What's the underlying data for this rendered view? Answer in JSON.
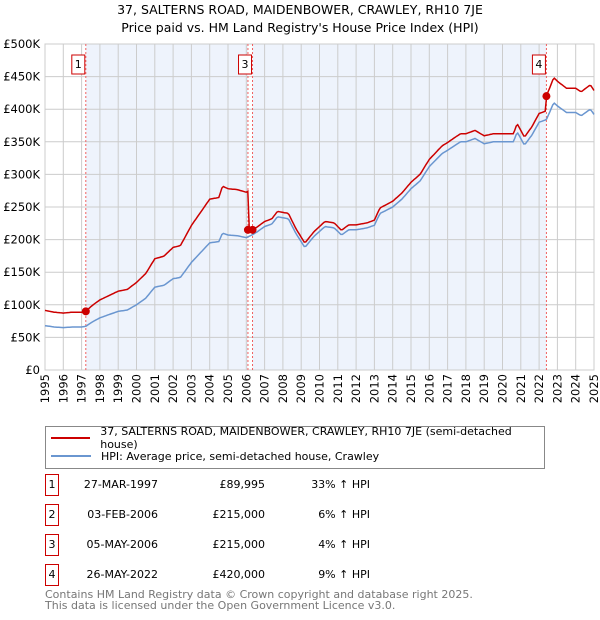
{
  "chart_data": {
    "type": "line",
    "title": "37, SALTERNS ROAD, MAIDENBOWER, CRAWLEY, RH10 7JE",
    "subtitle": "Price paid vs. HM Land Registry's House Price Index (HPI)",
    "xlim": [
      1995,
      2025
    ],
    "ylim": [
      0,
      500000
    ],
    "x_ticks": [
      "1995",
      "1996",
      "1997",
      "1998",
      "1999",
      "2000",
      "2001",
      "2002",
      "2003",
      "2004",
      "2005",
      "2006",
      "2007",
      "2008",
      "2009",
      "2010",
      "2011",
      "2012",
      "2013",
      "2014",
      "2015",
      "2016",
      "2017",
      "2018",
      "2019",
      "2020",
      "2021",
      "2022",
      "2023",
      "2024",
      "2025"
    ],
    "y_ticks": [
      {
        "v": 0,
        "label": "£0"
      },
      {
        "v": 50000,
        "label": "£50K"
      },
      {
        "v": 100000,
        "label": "£100K"
      },
      {
        "v": 150000,
        "label": "£150K"
      },
      {
        "v": 200000,
        "label": "£200K"
      },
      {
        "v": 250000,
        "label": "£250K"
      },
      {
        "v": 300000,
        "label": "£300K"
      },
      {
        "v": 350000,
        "label": "£350K"
      },
      {
        "v": 400000,
        "label": "£400K"
      },
      {
        "v": 450000,
        "label": "£450K"
      },
      {
        "v": 500000,
        "label": "£500K"
      }
    ],
    "grid": true,
    "legend_placement": "bottom",
    "colors": {
      "property": "#cc0000",
      "hpi": "#6a96d0",
      "shade": "#eef3fc"
    },
    "hpi_series": {
      "name": "HPI: Average price, semi-detached house, Crawley",
      "x": [
        1995,
        1995.5,
        1996,
        1996.5,
        1997,
        1997.23,
        1997.6,
        1998,
        1998.5,
        1999,
        1999.5,
        2000,
        2000.5,
        2001,
        2001.5,
        2002,
        2002.4,
        2003,
        2003.5,
        2004,
        2004.5,
        2004.7,
        2005,
        2005.5,
        2006,
        2006.3,
        2006.6,
        2007,
        2007.4,
        2007.7,
        2008.3,
        2008.7,
        2009.2,
        2009.7,
        2010.3,
        2010.8,
        2011.2,
        2011.6,
        2012,
        2012.6,
        2013,
        2013.3,
        2014,
        2014.5,
        2015,
        2015.5,
        2016,
        2016.7,
        2017,
        2017.7,
        2018,
        2018.5,
        2019,
        2019.5,
        2020,
        2020.6,
        2020.8,
        2021.2,
        2021.6,
        2022,
        2022.4,
        2022.8,
        2023,
        2023.5,
        2024,
        2024.3,
        2024.8,
        2025
      ],
      "y": [
        68000,
        66000,
        65000,
        66000,
        66000,
        67000,
        74000,
        80000,
        85000,
        90000,
        92000,
        100000,
        110000,
        127000,
        130000,
        140000,
        142000,
        165000,
        180000,
        195000,
        197000,
        210000,
        207000,
        206000,
        203000,
        207000,
        212000,
        220000,
        224000,
        235000,
        232000,
        210000,
        188000,
        205000,
        220000,
        218000,
        207000,
        215000,
        215000,
        218000,
        222000,
        240000,
        250000,
        262000,
        278000,
        290000,
        312000,
        332000,
        337000,
        350000,
        350000,
        355000,
        347000,
        350000,
        350000,
        350000,
        365000,
        345000,
        360000,
        380000,
        384000,
        410000,
        405000,
        395000,
        395000,
        390000,
        400000,
        392000
      ]
    },
    "property_series": {
      "name": "37, SALTERNS ROAD, MAIDENBOWER, CRAWLEY, RH10 7JE (semi-detached house)",
      "method": "last sale price indexed by HPI"
    },
    "sales": [
      {
        "n": "1",
        "t": 1997.23,
        "date": "27-MAR-1997",
        "price": 89995,
        "price_label": "£89,995",
        "delta": "33% ↑ HPI"
      },
      {
        "n": "2",
        "t": 2006.09,
        "date": "03-FEB-2006",
        "price": 215000,
        "price_label": "£215,000",
        "delta": "6% ↑ HPI"
      },
      {
        "n": "3",
        "t": 2006.34,
        "date": "05-MAY-2006",
        "price": 215000,
        "price_label": "£215,000",
        "delta": "4% ↑ HPI"
      },
      {
        "n": "4",
        "t": 2022.4,
        "date": "26-MAY-2022",
        "price": 420000,
        "price_label": "£420,000",
        "delta": "9% ↑ HPI"
      }
    ]
  },
  "legend": {
    "property": "37, SALTERNS ROAD, MAIDENBOWER, CRAWLEY, RH10 7JE (semi-detached house)",
    "hpi": "HPI: Average price, semi-detached house, Crawley"
  },
  "footer": {
    "line1": "Contains HM Land Registry data © Crown copyright and database right 2025.",
    "line2": "This data is licensed under the Open Government Licence v3.0."
  }
}
